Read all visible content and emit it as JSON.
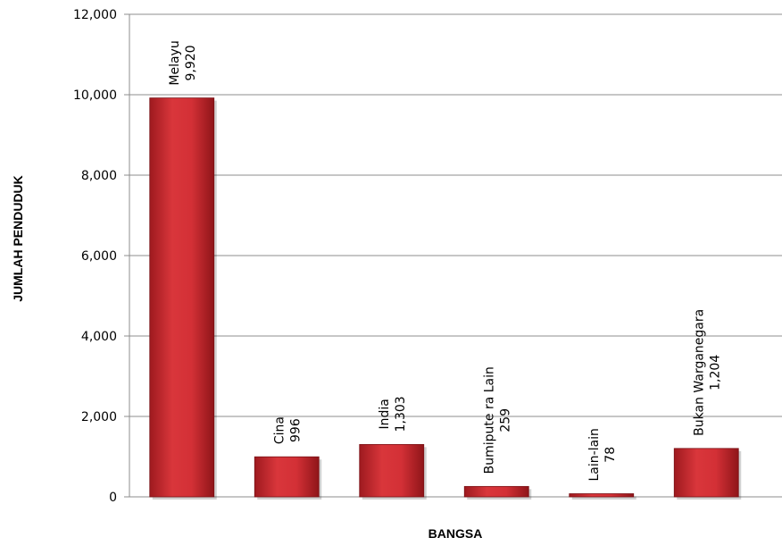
{
  "chart_data": {
    "type": "bar",
    "xlabel": "BANGSA",
    "ylabel": "JUMLAH PENDUDUK",
    "ylim": [
      0,
      12000
    ],
    "yticks": [
      0,
      2000,
      4000,
      6000,
      8000,
      10000,
      12000
    ],
    "ytick_labels": [
      "0",
      "2,000",
      "4,000",
      "6,000",
      "8,000",
      "10,000",
      "12,000"
    ],
    "grid": true,
    "legend": "none",
    "categories": [
      "Melayu",
      "Cina",
      "India",
      "Bumiputera Lain",
      "Lain-lain",
      "Bukan Warganegara"
    ],
    "category_labels": [
      "Melayu",
      "Cina",
      "India",
      "Bumipute ra Lain",
      "Lain-lain",
      "Bukan Warganegara"
    ],
    "values": [
      9920,
      996,
      1303,
      259,
      78,
      1204
    ],
    "value_labels": [
      "9,920",
      "996",
      "1,303",
      "259",
      "78",
      "1,204"
    ],
    "bar_color": "#c0282d"
  }
}
